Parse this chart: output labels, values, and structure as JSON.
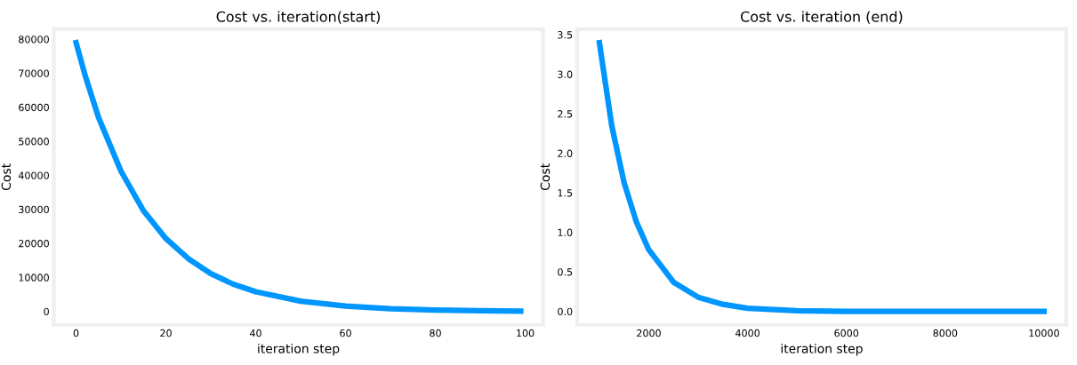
{
  "chart_data": [
    {
      "type": "line",
      "title": "Cost vs. iteration(start)",
      "xlabel": "iteration step",
      "ylabel": "Cost",
      "grid": false,
      "marker": "none",
      "line_style": "solid",
      "x": [
        0,
        2,
        5,
        10,
        15,
        20,
        25,
        30,
        35,
        40,
        50,
        60,
        70,
        80,
        90,
        99
      ],
      "series": [
        {
          "color": "#0096ff",
          "values": [
            79000,
            69400,
            57000,
            41200,
            29600,
            21400,
            15500,
            11100,
            8000,
            5800,
            3000,
            1600,
            800,
            400,
            200,
            100
          ]
        }
      ],
      "xlim": [
        -4.95,
        103.95
      ],
      "xticks": [
        0,
        20,
        40,
        60,
        80,
        100
      ],
      "ylim": [
        -3950,
        82950
      ],
      "yticks": [
        0,
        10000,
        20000,
        30000,
        40000,
        50000,
        60000,
        70000,
        80000
      ]
    },
    {
      "type": "line",
      "title": "Cost vs. iteration (end)",
      "xlabel": "iteration step",
      "ylabel": "Cost",
      "grid": false,
      "marker": "none",
      "line_style": "solid",
      "x": [
        1000,
        1250,
        1500,
        1750,
        2000,
        2500,
        3000,
        3500,
        4000,
        5000,
        6000,
        8000,
        10000
      ],
      "series": [
        {
          "color": "#0096ff",
          "values": [
            3.4,
            2.35,
            1.63,
            1.13,
            0.78,
            0.37,
            0.18,
            0.09,
            0.04,
            0.01,
            0,
            0,
            0
          ]
        }
      ],
      "xlim": [
        550,
        10450
      ],
      "xticks": [
        2000,
        4000,
        6000,
        8000,
        10000
      ],
      "ylim": [
        -0.17,
        3.57
      ],
      "yticks": [
        {
          "value": 0,
          "label": "0.0"
        },
        {
          "value": 0.5,
          "label": "0.5"
        },
        {
          "value": 1,
          "label": "1.0"
        },
        {
          "value": 1.5,
          "label": "1.5"
        },
        {
          "value": 2,
          "label": "2.0"
        },
        {
          "value": 2.5,
          "label": "2.5"
        },
        {
          "value": 3,
          "label": "3.0"
        },
        {
          "value": 3.5,
          "label": "3.5"
        }
      ]
    }
  ]
}
